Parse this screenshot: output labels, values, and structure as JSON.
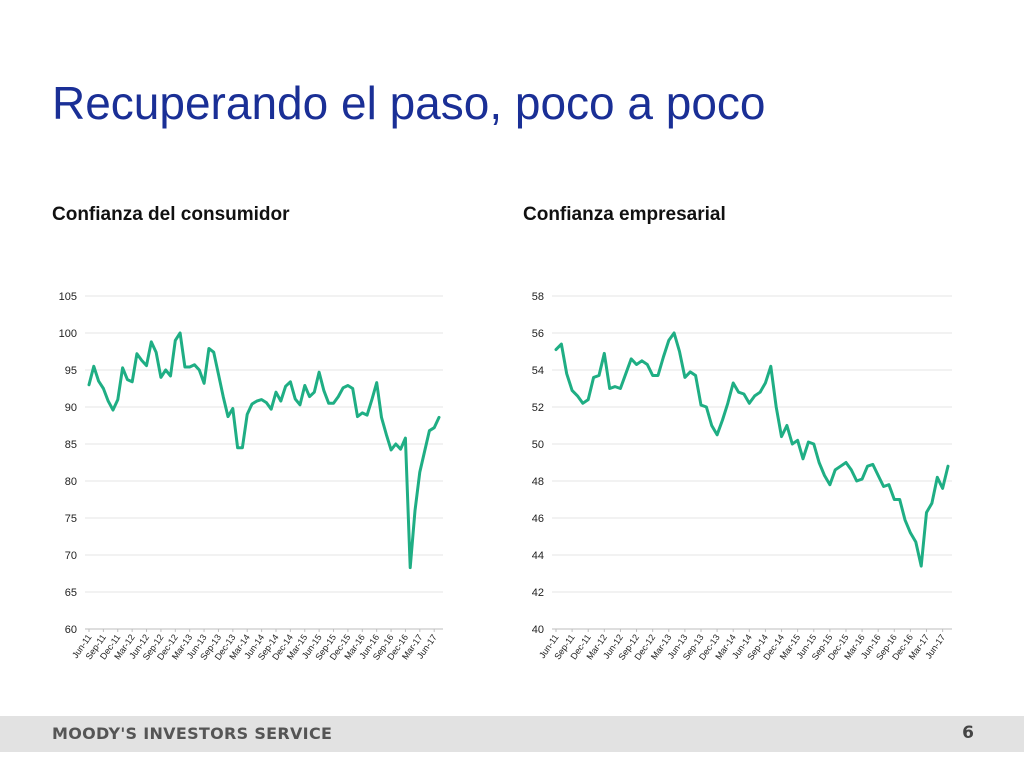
{
  "slide": {
    "title": "Recuperando el paso, poco a poco",
    "footer_brand": "MOODY'S INVESTORS SERVICE",
    "page_number": "6"
  },
  "colors": {
    "line": "#1fae84",
    "title": "#1a2f96",
    "grid": "#e6e6e6"
  },
  "chart_data": [
    {
      "type": "line",
      "title": "Confianza del consumidor",
      "ylim": [
        60,
        105
      ],
      "yticks": [
        60,
        65,
        70,
        75,
        80,
        85,
        90,
        95,
        100,
        105
      ],
      "xtick_labels": [
        "Jun-11",
        "Sep-11",
        "Dec-11",
        "Mar-12",
        "Jun-12",
        "Sep-12",
        "Dec-12",
        "Mar-13",
        "Jun-13",
        "Sep-13",
        "Dec-13",
        "Mar-14",
        "Jun-14",
        "Sep-14",
        "Dec-14",
        "Mar-15",
        "Jun-15",
        "Sep-15",
        "Dec-15",
        "Mar-16",
        "Jun-16",
        "Sep-16",
        "Dec-16",
        "Mar-17",
        "Jun-17"
      ],
      "x_start": "Jun-11",
      "x_end": "Aug-17",
      "grid": true,
      "values": [
        93.0,
        95.5,
        93.5,
        92.5,
        90.8,
        89.6,
        91.0,
        95.3,
        93.7,
        93.4,
        97.2,
        96.3,
        95.6,
        98.8,
        97.4,
        94.0,
        95.0,
        94.2,
        99.0,
        100.0,
        95.4,
        95.4,
        95.7,
        95.0,
        93.2,
        97.9,
        97.4,
        94.4,
        91.4,
        88.7,
        89.8,
        84.5,
        84.5,
        89.0,
        90.4,
        90.8,
        91.0,
        90.6,
        89.7,
        92.0,
        90.8,
        92.8,
        93.4,
        91.1,
        90.3,
        92.9,
        91.4,
        92.0,
        94.7,
        92.2,
        90.5,
        90.5,
        91.4,
        92.6,
        92.9,
        92.5,
        88.7,
        89.2,
        88.9,
        91.0,
        93.3,
        88.6,
        86.3,
        84.2,
        85.0,
        84.3,
        85.8,
        68.3,
        76.0,
        81.2,
        84.0,
        86.8,
        87.2,
        88.6
      ]
    },
    {
      "type": "line",
      "title": "Confianza empresarial",
      "ylim": [
        40,
        58
      ],
      "yticks": [
        40,
        42,
        44,
        46,
        48,
        50,
        52,
        54,
        56,
        58
      ],
      "xtick_labels": [
        "Jun-11",
        "Sep-11",
        "Dec-11",
        "Mar-12",
        "Jun-12",
        "Sep-12",
        "Dec-12",
        "Mar-13",
        "Jun-13",
        "Sep-13",
        "Dec-13",
        "Mar-14",
        "Jun-14",
        "Sep-14",
        "Dec-14",
        "Mar-15",
        "Jun-15",
        "Sep-15",
        "Dec-15",
        "Mar-16",
        "Jun-16",
        "Sep-16",
        "Dec-16",
        "Mar-17",
        "Jun-17"
      ],
      "x_start": "Jun-11",
      "x_end": "Aug-17",
      "grid": true,
      "values": [
        55.1,
        55.4,
        53.8,
        52.9,
        52.6,
        52.2,
        52.4,
        53.6,
        53.7,
        54.9,
        53.0,
        53.1,
        53.0,
        53.8,
        54.6,
        54.3,
        54.5,
        54.3,
        53.7,
        53.7,
        54.7,
        55.6,
        56.0,
        55.0,
        53.6,
        53.9,
        53.7,
        52.1,
        52.0,
        51.0,
        50.5,
        51.3,
        52.2,
        53.3,
        52.8,
        52.7,
        52.2,
        52.6,
        52.8,
        53.3,
        54.2,
        52.0,
        50.4,
        51.0,
        50.0,
        50.2,
        49.2,
        50.1,
        50.0,
        49.0,
        48.3,
        47.8,
        48.6,
        48.8,
        49.0,
        48.6,
        48.0,
        48.1,
        48.8,
        48.9,
        48.3,
        47.7,
        47.8,
        47.0,
        47.0,
        45.9,
        45.2,
        44.7,
        43.4,
        46.3,
        46.8,
        48.2,
        47.6,
        48.8
      ]
    }
  ]
}
